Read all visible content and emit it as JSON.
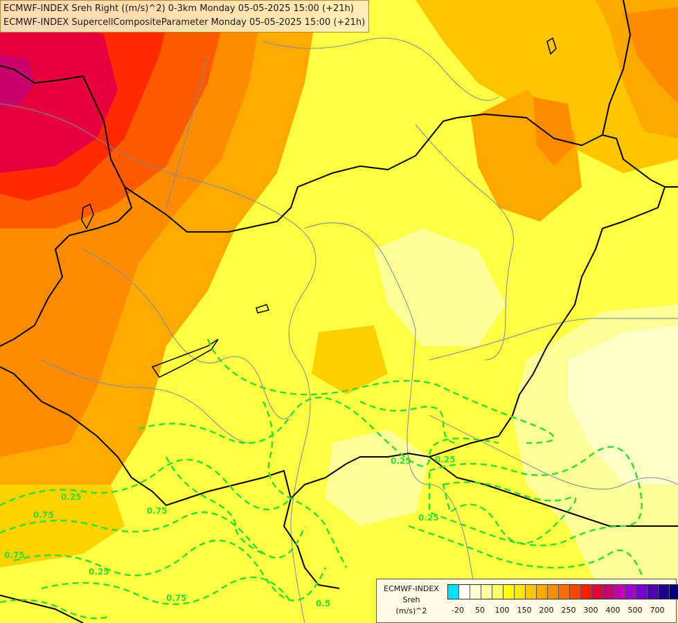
{
  "title": {
    "line1": "ECMWF-INDEX Sreh Right ((m/s)^2) 0-3km Monday 05-05-2025 15:00 (+21h)",
    "line2": "ECMWF-INDEX SupercellCompositeParameter Monday 05-05-2025 15:00 (+21h)"
  },
  "legend": {
    "line1": "ECMWF-INDEX",
    "line2": "Sreh",
    "line3": "(m/s)^2",
    "swatches": [
      "#00e5ff",
      "#ffffff",
      "#ffffd0",
      "#ffffa0",
      "#ffff66",
      "#ffff00",
      "#ffe600",
      "#ffc800",
      "#ffaa00",
      "#ff8c00",
      "#ff6e00",
      "#ff4600",
      "#ff1e00",
      "#e6003c",
      "#c8006e",
      "#c800b4",
      "#a000d2",
      "#7800d2",
      "#5000b4",
      "#1e0096",
      "#000078"
    ],
    "ticks": [
      {
        "label": "-20"
      },
      {
        "label": "50"
      },
      {
        "label": "100"
      },
      {
        "label": "150"
      },
      {
        "label": "200"
      },
      {
        "label": "250"
      },
      {
        "label": "300"
      },
      {
        "label": "400"
      },
      {
        "label": "500"
      },
      {
        "label": "700"
      }
    ]
  },
  "contour_labels": [
    "0.25",
    "0.25",
    "0.75",
    "0.75",
    "0.25",
    "0.75",
    "0.25",
    "0.5",
    "0.75",
    "0.25"
  ],
  "colors": {
    "contour": "#33dd33",
    "border": "#000000",
    "river": "#7a8aa0"
  }
}
